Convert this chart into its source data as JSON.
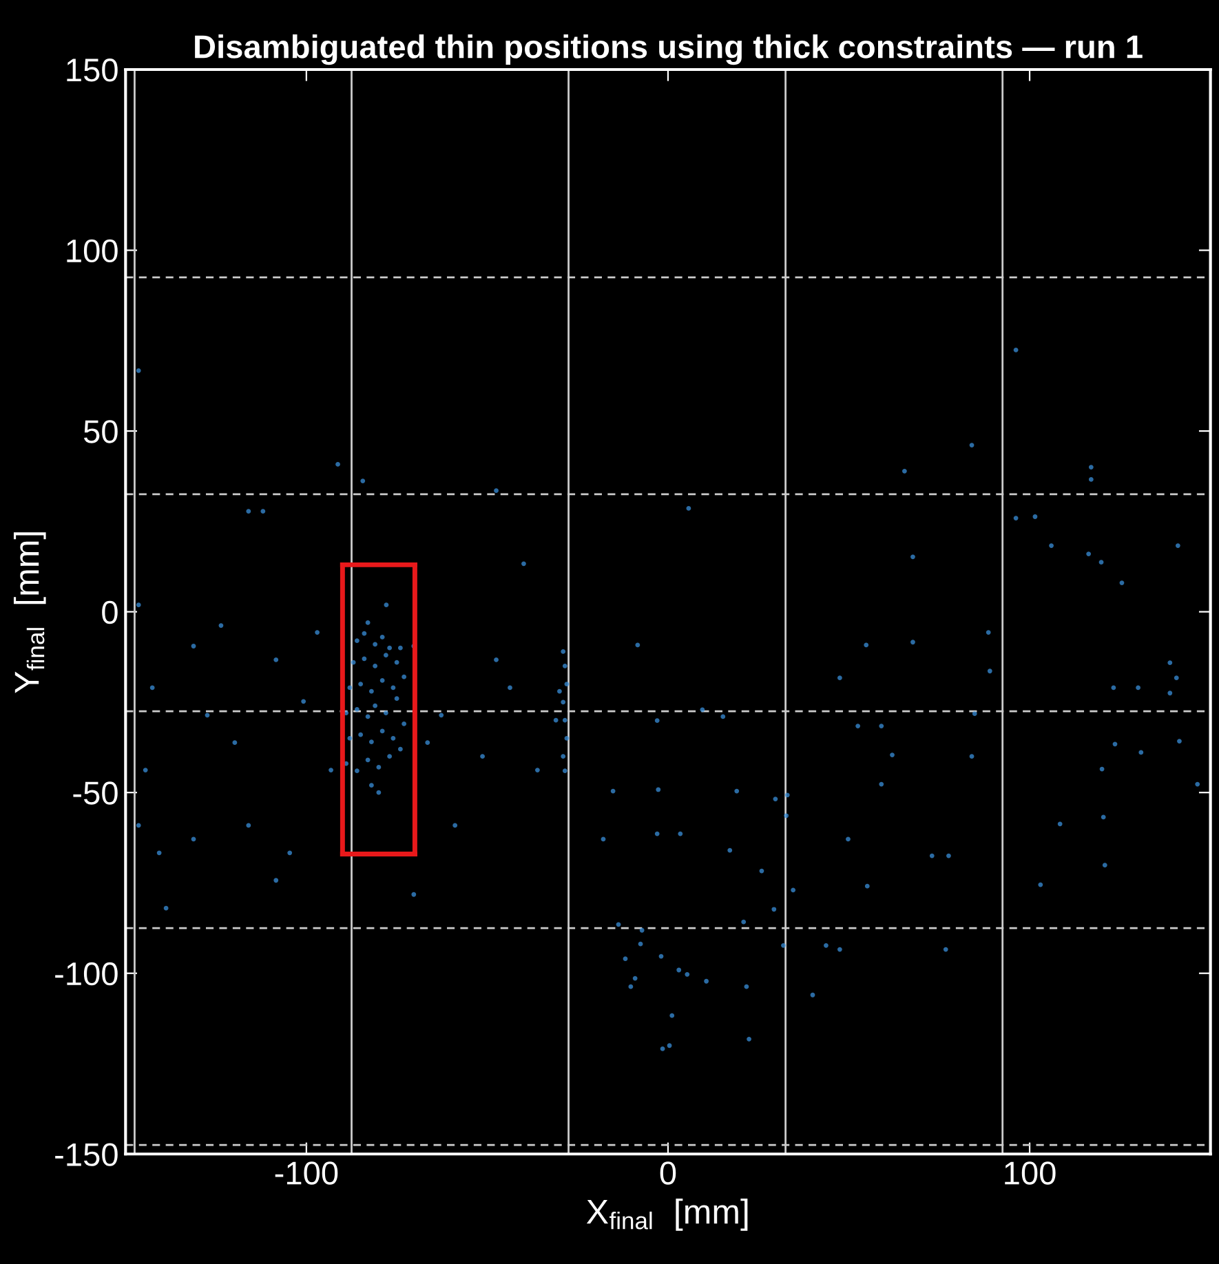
{
  "chart_data": {
    "type": "scatter",
    "title": "Disambiguated thin positions using thick constraints — run 1",
    "xlabel": "X$_{final}$  [mm]",
    "ylabel": "Y$_{final}$  [mm]",
    "xlim": [
      -150,
      150
    ],
    "ylim": [
      -150,
      150
    ],
    "xticks": [
      -100,
      0,
      100
    ],
    "yticks": [
      -150,
      -100,
      -50,
      0,
      50,
      100,
      150
    ],
    "grid": false,
    "legend": false,
    "marker": "circle",
    "ref_lines": [
      {
        "axis": "x",
        "value": -147.5,
        "color": "#cccccc",
        "line_style": "solid"
      },
      {
        "axis": "x",
        "value": -87.5,
        "color": "#cccccc",
        "line_style": "solid"
      },
      {
        "axis": "x",
        "value": -27.5,
        "color": "#cccccc",
        "line_style": "solid"
      },
      {
        "axis": "x",
        "value": 32.5,
        "color": "#cccccc",
        "line_style": "solid"
      },
      {
        "axis": "x",
        "value": 92.5,
        "color": "#cccccc",
        "line_style": "solid"
      },
      {
        "axis": "y",
        "value": 92.5,
        "color": "#cccccc",
        "line_style": "dashed"
      },
      {
        "axis": "y",
        "value": 32.5,
        "color": "#cccccc",
        "line_style": "dashed"
      },
      {
        "axis": "y",
        "value": -27.5,
        "color": "#cccccc",
        "line_style": "dashed"
      },
      {
        "axis": "y",
        "value": -87.5,
        "color": "#cccccc",
        "line_style": "dashed"
      },
      {
        "axis": "y",
        "value": -147.5,
        "color": "#cccccc",
        "line_style": "dashed"
      }
    ],
    "series": [
      {
        "color": "#3a8fd9",
        "x": [
          -89,
          -86,
          -83,
          -80,
          -77,
          -74,
          -88,
          -85,
          -82,
          -79,
          -76,
          -73,
          -89,
          -86,
          -83,
          -81,
          -78,
          -75,
          -88,
          -85,
          -82,
          -79,
          -76,
          -73,
          -87,
          -84,
          -81,
          -78,
          -75,
          -74,
          -86,
          -84,
          -81,
          -79,
          -77,
          -82,
          -83,
          -80,
          -28.5,
          -29,
          -28,
          -28.5,
          -29,
          -28,
          -28.5,
          -29,
          -30,
          -31,
          -146.4,
          -91.3,
          -84.4,
          -47.5,
          -116,
          -112,
          5.7,
          117,
          117,
          65.4,
          84,
          67.7,
          96.2,
          96.2,
          101.5,
          106,
          116.3,
          119.8,
          141,
          125.5,
          138.8,
          140.6,
          138.8,
          123.2,
          130,
          123.6,
          130.8,
          141.4,
          120,
          120.4,
          120.8,
          108.4,
          103,
          88.6,
          89,
          84,
          84.8,
          67.7,
          54.8,
          47.5,
          52.5,
          59,
          62,
          59,
          49.8,
          73,
          55.1,
          76.8,
          77.6,
          47.5,
          43.7,
          33,
          32.7,
          34.6,
          31.9,
          40,
          29.7,
          9.5,
          15.2,
          19,
          17.1,
          25.9,
          29.3,
          20.9,
          21.7,
          22.4,
          1.1,
          0.4,
          -1.5,
          3,
          5.3,
          10.6,
          -9.1,
          -11.8,
          -10.3,
          -7.6,
          -7.2,
          -1.9,
          3.4,
          -3,
          -13.7,
          -15.2,
          -17.9,
          -2.7,
          -3,
          -8.4,
          -142.6,
          -144.5,
          -146.4,
          -140.7,
          -138.8,
          -131.2,
          -127.4,
          -119.8,
          -116,
          -108.4,
          -104.6,
          -100.8,
          -123.6,
          -93.2,
          -97,
          -70.3,
          -66.5,
          -62.7,
          -58.9,
          -51.3,
          -47.5,
          -43.7,
          -39.9,
          -36.1,
          -70.3,
          -77.9,
          -108.4,
          -131.2,
          -146.4,
          146.4
        ],
        "values": [
          -42,
          -44,
          -41,
          -43,
          -40,
          -38,
          -35,
          -34,
          -36,
          -33,
          -35,
          -31,
          -28,
          -27,
          -29,
          -26,
          -28,
          -24,
          -21,
          -20,
          -22,
          -19,
          -21,
          -18,
          -14,
          -13,
          -15,
          -12,
          -14,
          -10,
          -8,
          -6,
          -9,
          -7,
          -10,
          -48,
          -3,
          -50,
          -44,
          -40,
          -35,
          -30,
          -25,
          -20,
          -15,
          -11,
          -22,
          -30,
          66.7,
          40.8,
          36.2,
          33.5,
          27.8,
          27.8,
          28.6,
          40,
          36.6,
          38.9,
          46.1,
          15.2,
          72.4,
          25.9,
          26.3,
          18.3,
          16,
          13.7,
          18.3,
          8,
          -14.1,
          -18.3,
          -22.5,
          -21,
          -21,
          -36.6,
          -38.9,
          -35.8,
          -43.5,
          -56.8,
          -70.1,
          -58.7,
          -75.5,
          -5.7,
          -16.4,
          -40,
          -28.2,
          -8.4,
          -9.2,
          -18.3,
          -31.6,
          -31.6,
          -39.6,
          -47.7,
          -62.9,
          -67.5,
          -75.9,
          -93.4,
          -67.5,
          -93.4,
          -92.3,
          -50.7,
          -56.4,
          -77,
          -92.3,
          -106,
          -51.8,
          -27.1,
          -29,
          -49.6,
          -66,
          -71.7,
          -82.3,
          -85.8,
          -103.7,
          -118.2,
          -111.7,
          -120,
          -120.9,
          -99.1,
          -100.3,
          -102.2,
          -101.4,
          -96,
          -103.7,
          -91.9,
          -88.1,
          -95.3,
          -61.4,
          -61.4,
          -86.5,
          -49.6,
          -62.9,
          -49.2,
          -30.1,
          -9.2,
          -21,
          -43.8,
          -59.1,
          -66.7,
          -82,
          -9.5,
          -28.6,
          -36.2,
          -59.1,
          -13.3,
          -66.7,
          -24.8,
          -3.8,
          -43.8,
          -5.7,
          -9.5,
          -36.2,
          -28.6,
          -59.1,
          -40,
          -13.3,
          -21,
          13.3,
          -43.8,
          -78.2,
          1.9,
          -74.3,
          -62.9,
          1.9,
          -47.7
        ]
      },
      {
        "type": "line",
        "marker": "none",
        "line_style": "solid",
        "color": "#e8191b",
        "x": [
          -90,
          -70
        ],
        "values": [
          13,
          13
        ]
      },
      {
        "type": "line",
        "marker": "none",
        "line_style": "solid",
        "color": "#e8191b",
        "x": [
          -70,
          -70
        ],
        "values": [
          13,
          -67
        ]
      },
      {
        "type": "line",
        "marker": "none",
        "line_style": "solid",
        "color": "#e8191b",
        "x": [
          -90,
          -70
        ],
        "values": [
          -67,
          -67
        ]
      },
      {
        "type": "line",
        "marker": "none",
        "line_style": "solid",
        "color": "#e8191b",
        "x": [
          -90,
          -90
        ],
        "values": [
          -67,
          13
        ]
      }
    ]
  }
}
